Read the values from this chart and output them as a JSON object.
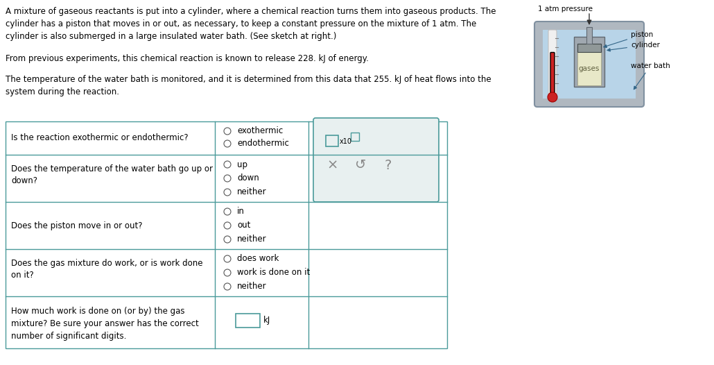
{
  "bg_color": "#ffffff",
  "text_color": "#000000",
  "paragraph1": "A mixture of gaseous reactants is put into a cylinder, where a chemical reaction turns them into gaseous products. The\ncylinder has a piston that moves in or out, as necessary, to keep a constant pressure on the mixture of 1 atm. The\ncylinder is also submerged in a large insulated water bath. (See sketch at right.)",
  "paragraph2": "From previous experiments, this chemical reaction is known to release 228. kJ of energy.",
  "paragraph3": "The temperature of the water bath is monitored, and it is determined from this data that 255. kJ of heat flows into the\nsystem during the reaction.",
  "question1": "Is the reaction exothermic or endothermic?",
  "q1_options": [
    "exothermic",
    "endothermic"
  ],
  "question2": "Does the temperature of the water bath go up or\ndown?",
  "q2_options": [
    "up",
    "down",
    "neither"
  ],
  "question3": "Does the piston move in or out?",
  "q3_options": [
    "in",
    "out",
    "neither"
  ],
  "question4": "Does the gas mixture do work, or is work done\non it?",
  "q4_options": [
    "does work",
    "work is done on it",
    "neither"
  ],
  "question5": "How much work is done on (or by) the gas\nmixture? Be sure your answer has the correct\nnumber of significant digits.",
  "q5_unit": "kJ",
  "diagram_label_pressure": "1 atm pressure",
  "diagram_label_piston": "piston",
  "diagram_label_cylinder": "cylinder",
  "diagram_label_waterbath": "water bath",
  "diagram_label_gases": "gases",
  "table_border_color": "#4a9a9a",
  "radio_color": "#555555",
  "diagram_bg": "#c8dce8",
  "diagram_bath_outer": "#b0b8c0",
  "diagram_cylinder_color": "#a0a8b0",
  "diagram_gases_color": "#e8e8c8",
  "diagram_piston_color": "#909898",
  "thermometer_color": "#cc2222",
  "diagram_water_color": "#b8d4e8",
  "answer_box_color": "#aacccc",
  "answer_box_border": "#4a9a9a"
}
